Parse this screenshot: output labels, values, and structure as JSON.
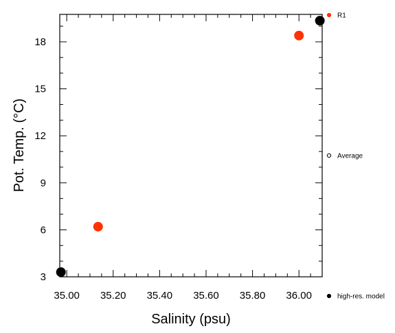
{
  "chart_data": {
    "type": "scatter",
    "title": "",
    "xlabel": "Salinity (psu)",
    "ylabel": "Pot. Temp. (°C)",
    "xlim": [
      34.97,
      36.1
    ],
    "ylim": [
      3.0,
      19.75
    ],
    "x_ticks": [
      35.0,
      35.2,
      35.4,
      35.6,
      35.8,
      36.0
    ],
    "x_tick_labels": [
      "35.00",
      "35.20",
      "35.40",
      "35.60",
      "35.80",
      "36.00"
    ],
    "y_ticks": [
      3,
      6,
      9,
      12,
      15,
      18
    ],
    "y_tick_labels": [
      "3",
      "6",
      "9",
      "12",
      "15",
      "18"
    ],
    "grid": false,
    "legend_position": "right, outside plot area",
    "series": [
      {
        "name": "R1",
        "color": "#ff3300",
        "marker": "filled-circle",
        "points": [
          {
            "x": 35.135,
            "y": 6.2
          },
          {
            "x": 36.0,
            "y": 18.4
          }
        ]
      },
      {
        "name": "Average",
        "color": "#000000",
        "marker": "open-circle",
        "points": []
      },
      {
        "name": "high-res. model",
        "color": "#000000",
        "marker": "filled-circle",
        "points": [
          {
            "x": 34.975,
            "y": 3.3
          },
          {
            "x": 36.09,
            "y": 19.35
          }
        ]
      }
    ]
  }
}
